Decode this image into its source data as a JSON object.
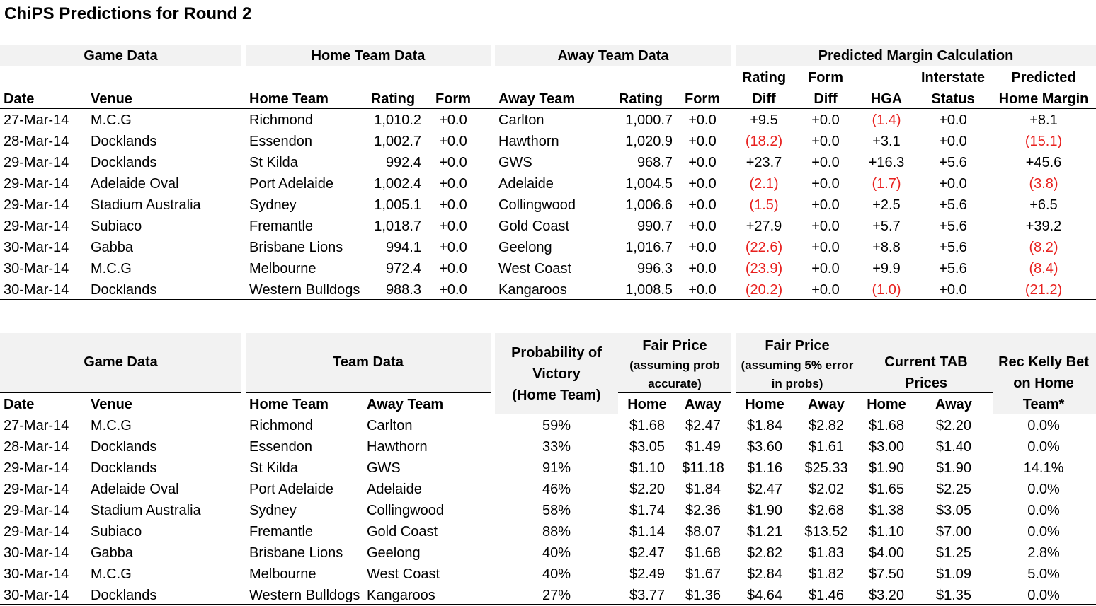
{
  "title": "ChiPS Predictions for Round 2",
  "table1": {
    "groups": [
      "Game Data",
      "Home Team Data",
      "Away Team Data",
      "Predicted Margin Calculation"
    ],
    "subheaders_top": {
      "rating_diff": "Rating",
      "form_diff": "Form",
      "interstate": "Interstate",
      "predicted": "Predicted"
    },
    "columns": [
      "Date",
      "Venue",
      "Home Team",
      "Rating",
      "Form",
      "Away Team",
      "Rating",
      "Form",
      "Diff",
      "Diff",
      "HGA",
      "Status",
      "Home Margin"
    ],
    "rows": [
      [
        "27-Mar-14",
        "M.C.G",
        "Richmond",
        "1,010.2",
        "+0.0",
        "Carlton",
        "1,000.7",
        "+0.0",
        "+9.5",
        "+0.0",
        "(1.4)",
        "+0.0",
        "+8.1"
      ],
      [
        "28-Mar-14",
        "Docklands",
        "Essendon",
        "1,002.7",
        "+0.0",
        "Hawthorn",
        "1,020.9",
        "+0.0",
        "(18.2)",
        "+0.0",
        "+3.1",
        "+0.0",
        "(15.1)"
      ],
      [
        "29-Mar-14",
        "Docklands",
        "St Kilda",
        "992.4",
        "+0.0",
        "GWS",
        "968.7",
        "+0.0",
        "+23.7",
        "+0.0",
        "+16.3",
        "+5.6",
        "+45.6"
      ],
      [
        "29-Mar-14",
        "Adelaide Oval",
        "Port Adelaide",
        "1,002.4",
        "+0.0",
        "Adelaide",
        "1,004.5",
        "+0.0",
        "(2.1)",
        "+0.0",
        "(1.7)",
        "+0.0",
        "(3.8)"
      ],
      [
        "29-Mar-14",
        "Stadium Australia",
        "Sydney",
        "1,005.1",
        "+0.0",
        "Collingwood",
        "1,006.6",
        "+0.0",
        "(1.5)",
        "+0.0",
        "+2.5",
        "+5.6",
        "+6.5"
      ],
      [
        "29-Mar-14",
        "Subiaco",
        "Fremantle",
        "1,018.7",
        "+0.0",
        "Gold Coast",
        "990.7",
        "+0.0",
        "+27.9",
        "+0.0",
        "+5.7",
        "+5.6",
        "+39.2"
      ],
      [
        "30-Mar-14",
        "Gabba",
        "Brisbane Lions",
        "994.1",
        "+0.0",
        "Geelong",
        "1,016.7",
        "+0.0",
        "(22.6)",
        "+0.0",
        "+8.8",
        "+5.6",
        "(8.2)"
      ],
      [
        "30-Mar-14",
        "M.C.G",
        "Melbourne",
        "972.4",
        "+0.0",
        "West Coast",
        "996.3",
        "+0.0",
        "(23.9)",
        "+0.0",
        "+9.9",
        "+5.6",
        "(8.4)"
      ],
      [
        "30-Mar-14",
        "Docklands",
        "Western Bulldogs",
        "988.3",
        "+0.0",
        "Kangaroos",
        "1,008.5",
        "+0.0",
        "(20.2)",
        "+0.0",
        "(1.0)",
        "+0.0",
        "(21.2)"
      ]
    ]
  },
  "table2": {
    "groups": [
      "Game Data",
      "Team Data"
    ],
    "prob_header": [
      "Probability of",
      "Victory",
      "(Home Team)"
    ],
    "fair1_header": [
      "Fair Price",
      "(assuming prob",
      "accurate)"
    ],
    "fair2_header": [
      "Fair Price",
      "(assuming 5% error",
      "in probs)"
    ],
    "tab_header": [
      "Current TAB",
      "Prices"
    ],
    "kelly_header": [
      "Rec Kelly Bet",
      "on Home",
      "Team*"
    ],
    "columns": [
      "Date",
      "Venue",
      "Home Team",
      "Away Team",
      "Home",
      "Away",
      "Home",
      "Away",
      "Home",
      "Away"
    ],
    "rows": [
      [
        "27-Mar-14",
        "M.C.G",
        "Richmond",
        "Carlton",
        "59%",
        "$1.68",
        "$2.47",
        "$1.84",
        "$2.82",
        "$1.68",
        "$2.20",
        "0.0%"
      ],
      [
        "28-Mar-14",
        "Docklands",
        "Essendon",
        "Hawthorn",
        "33%",
        "$3.05",
        "$1.49",
        "$3.60",
        "$1.61",
        "$3.00",
        "$1.40",
        "0.0%"
      ],
      [
        "29-Mar-14",
        "Docklands",
        "St Kilda",
        "GWS",
        "91%",
        "$1.10",
        "$11.18",
        "$1.16",
        "$25.33",
        "$1.90",
        "$1.90",
        "14.1%"
      ],
      [
        "29-Mar-14",
        "Adelaide Oval",
        "Port Adelaide",
        "Adelaide",
        "46%",
        "$2.20",
        "$1.84",
        "$2.47",
        "$2.02",
        "$1.65",
        "$2.25",
        "0.0%"
      ],
      [
        "29-Mar-14",
        "Stadium Australia",
        "Sydney",
        "Collingwood",
        "58%",
        "$1.74",
        "$2.36",
        "$1.90",
        "$2.68",
        "$1.38",
        "$3.05",
        "0.0%"
      ],
      [
        "29-Mar-14",
        "Subiaco",
        "Fremantle",
        "Gold Coast",
        "88%",
        "$1.14",
        "$8.07",
        "$1.21",
        "$13.52",
        "$1.10",
        "$7.00",
        "0.0%"
      ],
      [
        "30-Mar-14",
        "Gabba",
        "Brisbane Lions",
        "Geelong",
        "40%",
        "$2.47",
        "$1.68",
        "$2.82",
        "$1.83",
        "$4.00",
        "$1.25",
        "2.8%"
      ],
      [
        "30-Mar-14",
        "M.C.G",
        "Melbourne",
        "West Coast",
        "40%",
        "$2.49",
        "$1.67",
        "$2.84",
        "$1.82",
        "$7.50",
        "$1.09",
        "5.0%"
      ],
      [
        "30-Mar-14",
        "Docklands",
        "Western Bulldogs",
        "Kangaroos",
        "27%",
        "$3.77",
        "$1.36",
        "$4.64",
        "$1.46",
        "$3.20",
        "$1.35",
        "0.0%"
      ]
    ]
  },
  "colors": {
    "negative": "#e8201e",
    "header_band": "#f2f2f2"
  }
}
